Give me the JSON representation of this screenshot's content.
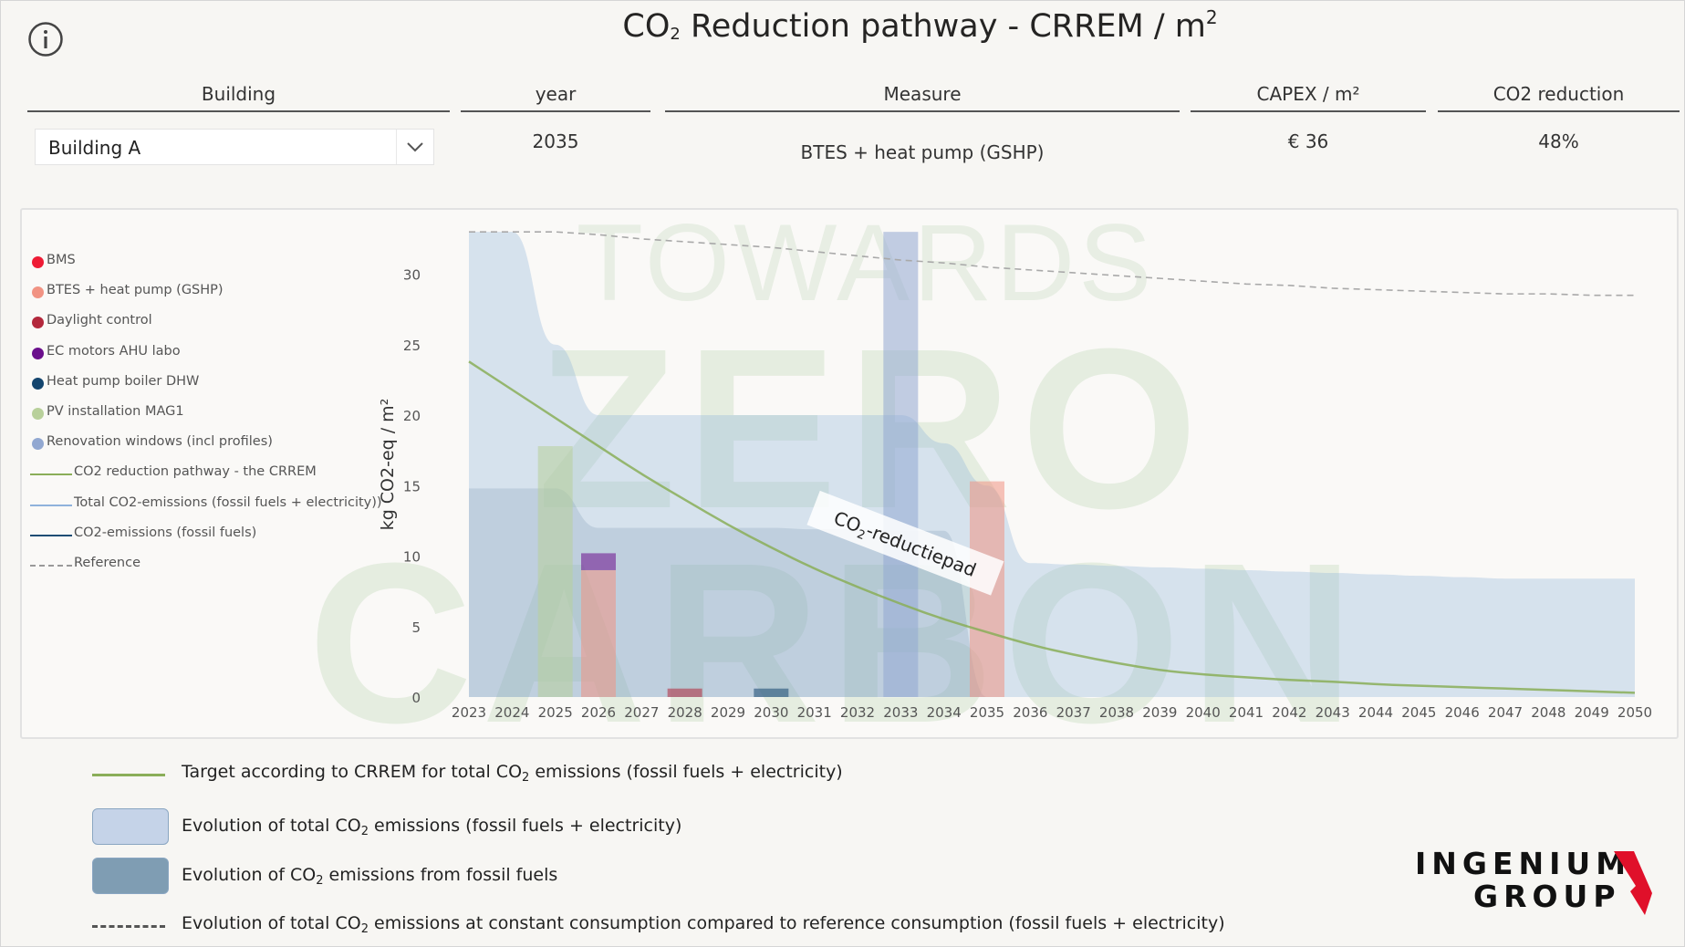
{
  "header": {
    "title_prefix": "CO",
    "title_sub": "2",
    "title_main": " Reduction pathway - CRREM / m",
    "title_sup": "2"
  },
  "filters": {
    "building_label": "Building",
    "year_label": "year",
    "measure_label": "Measure",
    "capex_label": "CAPEX / m²",
    "reduction_label": "CO2 reduction",
    "building_value": "Building A",
    "year_value": "2035",
    "measure_value": "BTES + heat pump (GSHP)",
    "capex_value": "€ 36",
    "reduction_value": "48%"
  },
  "legend": {
    "items": [
      {
        "label": "BMS",
        "kind": "dot",
        "color": "#ee1c35"
      },
      {
        "label": "BTES + heat pump (GSHP)",
        "kind": "dot",
        "color": "#f19383"
      },
      {
        "label": "Daylight control",
        "kind": "dot",
        "color": "#b3283c"
      },
      {
        "label": "EC motors AHU labo",
        "kind": "dot",
        "color": "#6b0f8c"
      },
      {
        "label": "Heat pump boiler DHW",
        "kind": "dot",
        "color": "#14456e"
      },
      {
        "label": "PV installation MAG1",
        "kind": "dot",
        "color": "#b8d09a"
      },
      {
        "label": "Renovation windows (incl profiles)",
        "kind": "dot",
        "color": "#92a8d1"
      },
      {
        "label": "CO2 reduction pathway - the CRREM",
        "kind": "line",
        "color": "#8aae58"
      },
      {
        "label": "Total CO2-emissions (fossil fuels + electricity))",
        "kind": "line",
        "color": "#8fb2dc"
      },
      {
        "label": "CO2-emissions (fossil fuels)",
        "kind": "line",
        "color": "#1e4d74"
      },
      {
        "label": "Reference",
        "kind": "dash",
        "color": "#999999"
      }
    ]
  },
  "chart_data": {
    "type": "area",
    "ylabel": "kg CO2-eq / m²",
    "xlabel": "",
    "ylim": [
      0,
      33
    ],
    "yticks": [
      0,
      5,
      10,
      15,
      20,
      25,
      30
    ],
    "categories": [
      "2023",
      "2024",
      "2025",
      "2026",
      "2027",
      "2028",
      "2029",
      "2030",
      "2031",
      "2032",
      "2033",
      "2034",
      "2035",
      "2036",
      "2037",
      "2038",
      "2039",
      "2040",
      "2041",
      "2042",
      "2043",
      "2044",
      "2045",
      "2046",
      "2047",
      "2048",
      "2049",
      "2050"
    ],
    "series": [
      {
        "name": "Total CO2-emissions (fossil fuels + electricity))",
        "type": "area",
        "color": "#8fb2dc",
        "values": [
          33.0,
          33.0,
          25.0,
          20.0,
          20.0,
          20.0,
          20.0,
          20.0,
          20.0,
          20.0,
          20.0,
          18.0,
          15.0,
          9.5,
          9.4,
          9.3,
          9.2,
          9.1,
          9.0,
          8.9,
          8.8,
          8.7,
          8.6,
          8.5,
          8.4,
          8.4,
          8.4,
          8.4
        ]
      },
      {
        "name": "CO2-emissions (fossil fuels)",
        "type": "area",
        "color": "#6d8ea7",
        "values": [
          14.8,
          14.8,
          14.8,
          12.0,
          12.0,
          12.0,
          12.0,
          12.0,
          11.9,
          11.9,
          11.8,
          11.8,
          0,
          0,
          0,
          0,
          0,
          0,
          0,
          0,
          0,
          0,
          0,
          0,
          0,
          0,
          0,
          0
        ]
      },
      {
        "name": "CO2 reduction pathway - the CRREM",
        "type": "line",
        "color": "#8aae58",
        "values": [
          23.8,
          21.8,
          19.8,
          17.8,
          15.8,
          14.0,
          12.2,
          10.6,
          9.1,
          7.8,
          6.6,
          5.5,
          4.6,
          3.7,
          3.0,
          2.4,
          1.9,
          1.6,
          1.4,
          1.2,
          1.1,
          0.9,
          0.8,
          0.7,
          0.6,
          0.5,
          0.4,
          0.3
        ]
      },
      {
        "name": "Reference",
        "type": "dashed-line",
        "color": "#999999",
        "values": [
          33.0,
          33.0,
          33.0,
          32.8,
          32.5,
          32.3,
          32.1,
          31.9,
          31.6,
          31.3,
          31.0,
          30.8,
          30.5,
          30.3,
          30.1,
          29.9,
          29.7,
          29.5,
          29.3,
          29.2,
          29.0,
          28.9,
          28.8,
          28.7,
          28.6,
          28.6,
          28.5,
          28.5
        ]
      }
    ],
    "bars": [
      {
        "year": "2025",
        "measure": "PV installation MAG1",
        "value": 17.8,
        "base": 0
      },
      {
        "year": "2026",
        "measure": "BTES + heat pump (GSHP)",
        "value": 9.0,
        "base": 0
      },
      {
        "year": "2026",
        "measure": "EC motors AHU labo",
        "value": 1.2,
        "base": 9.0
      },
      {
        "year": "2028",
        "measure": "Daylight control",
        "value": 0.6,
        "base": 0
      },
      {
        "year": "2030",
        "measure": "Heat pump boiler DHW",
        "value": 0.6,
        "base": 0
      },
      {
        "year": "2033",
        "measure": "Renovation windows (incl profiles)",
        "value": 33.0,
        "base": 0
      },
      {
        "year": "2035",
        "measure": "BTES + heat pump (GSHP)",
        "value": 15.3,
        "base": 0
      }
    ],
    "annotation": {
      "text_main": "CO",
      "text_sub": "2",
      "text_end": "-reductiepad"
    },
    "watermark": [
      "TOWARDS",
      "ZERO",
      "CARBON"
    ],
    "grid": false,
    "legend_position": "left"
  },
  "bottom_legend": {
    "items": [
      {
        "pre": "Target according to CRREM for total CO",
        "sub": "2",
        "post": " emissions (fossil fuels + electricity)",
        "kind": "line",
        "color": "#8aae58"
      },
      {
        "pre": "Evolution of total CO",
        "sub": "2",
        "post": " emissions (fossil fuels + electricity)",
        "kind": "box",
        "color": "#c5d3e8"
      },
      {
        "pre": "Evolution of CO",
        "sub": "2",
        "post": " emissions from fossil fuels",
        "kind": "box",
        "color": "#7f9db3"
      },
      {
        "pre": "Evolution of total CO",
        "sub": "2",
        "post": " emissions at constant consumption compared to reference consumption (fossil fuels + electricity)",
        "kind": "dash",
        "color": "#555555"
      }
    ]
  },
  "logo": {
    "line1": "INGENIUM",
    "line2": "GROUP",
    "accent_color": "#e0102a"
  }
}
